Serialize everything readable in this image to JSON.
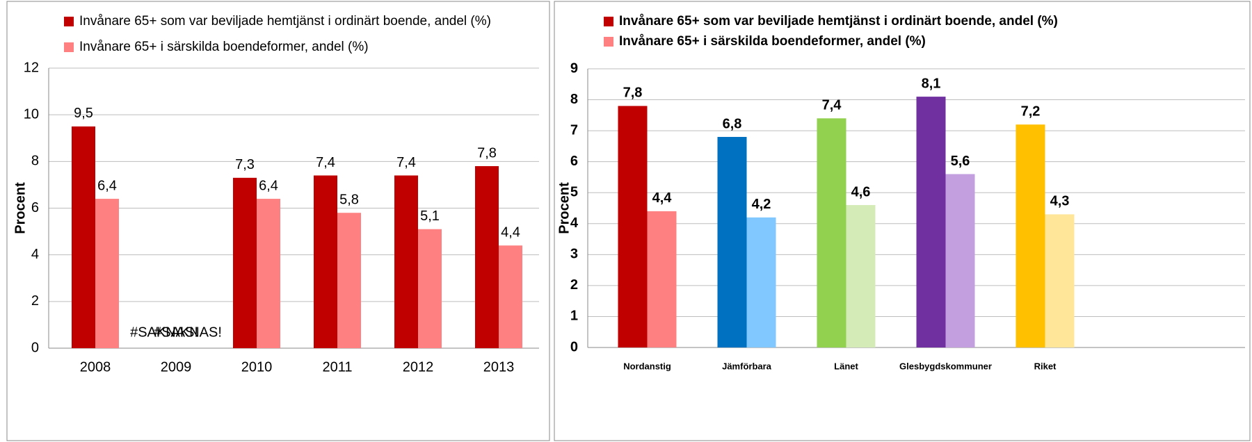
{
  "chart_data": [
    {
      "type": "bar",
      "y_label": "Procent",
      "categories": [
        "2008",
        "2009",
        "2010",
        "2011",
        "2012",
        "2013"
      ],
      "series": [
        {
          "name": "Invånare 65+ som var beviljade hemtjänst i ordinärt boende, andel (%)",
          "color": "#c00000",
          "values": [
            9.5,
            null,
            7.3,
            7.4,
            7.4,
            7.8
          ],
          "value_labels": [
            "9,5",
            "#SAKNAS!",
            "7,3",
            "7,4",
            "7,4",
            "7,8"
          ]
        },
        {
          "name": "Invånare 65+ i särskilda boendeformer, andel (%)",
          "color": "#ff8080",
          "values": [
            6.4,
            null,
            6.4,
            5.8,
            5.1,
            4.4
          ],
          "value_labels": [
            "6,4",
            "#SAKNAS!",
            "6,4",
            "5,8",
            "5,1",
            "4,4"
          ]
        }
      ],
      "ylim": [
        0,
        12
      ],
      "yticks": [
        0,
        2,
        4,
        6,
        8,
        10,
        12
      ],
      "grid": true
    },
    {
      "type": "bar",
      "y_label": "Procent",
      "categories": [
        "Nordanstig",
        "Jämförbara",
        "Länet",
        "Glesbygdskommuner",
        "Riket"
      ],
      "series": [
        {
          "name": "Invånare 65+ som var beviljade hemtjänst i ordinärt boende, andel (%)",
          "color": "#c00000",
          "colors": [
            "#c00000",
            "#0070c0",
            "#92d050",
            "#7030a0",
            "#ffc000"
          ],
          "values": [
            7.8,
            6.8,
            7.4,
            8.1,
            7.2
          ],
          "value_labels": [
            "7,8",
            "6,8",
            "7,4",
            "8,1",
            "7,2"
          ]
        },
        {
          "name": "Invånare 65+ i särskilda boendeformer, andel (%)",
          "color": "#ff8080",
          "colors": [
            "#ff8080",
            "#80c8ff",
            "#d4ebb8",
            "#c39fe0",
            "#ffe699"
          ],
          "values": [
            4.4,
            4.2,
            4.6,
            5.6,
            4.3
          ],
          "value_labels": [
            "4,4",
            "4,2",
            "4,6",
            "5,6",
            "4,3"
          ]
        }
      ],
      "ylim": [
        0,
        9
      ],
      "yticks": [
        0,
        1,
        2,
        3,
        4,
        5,
        6,
        7,
        8,
        9
      ],
      "grid": true
    }
  ]
}
